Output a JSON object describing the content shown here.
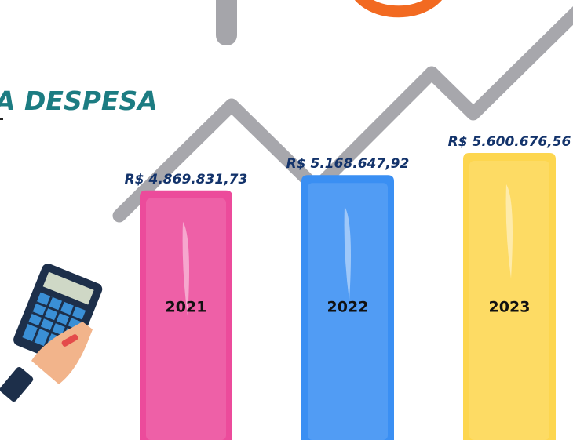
{
  "chart_data": {
    "type": "bar",
    "title": "A DESPESA",
    "categories": [
      "2021",
      "2022",
      "2023"
    ],
    "values": [
      4869831.73,
      5168647.92,
      5600676.56
    ],
    "value_labels": [
      "R$ 4.869.831,73",
      "R$ 5.168.647,92",
      "R$ 5.600.676,56"
    ],
    "colors": [
      "#ec4b9b",
      "#3a8ff3",
      "#fdd64f"
    ]
  }
}
